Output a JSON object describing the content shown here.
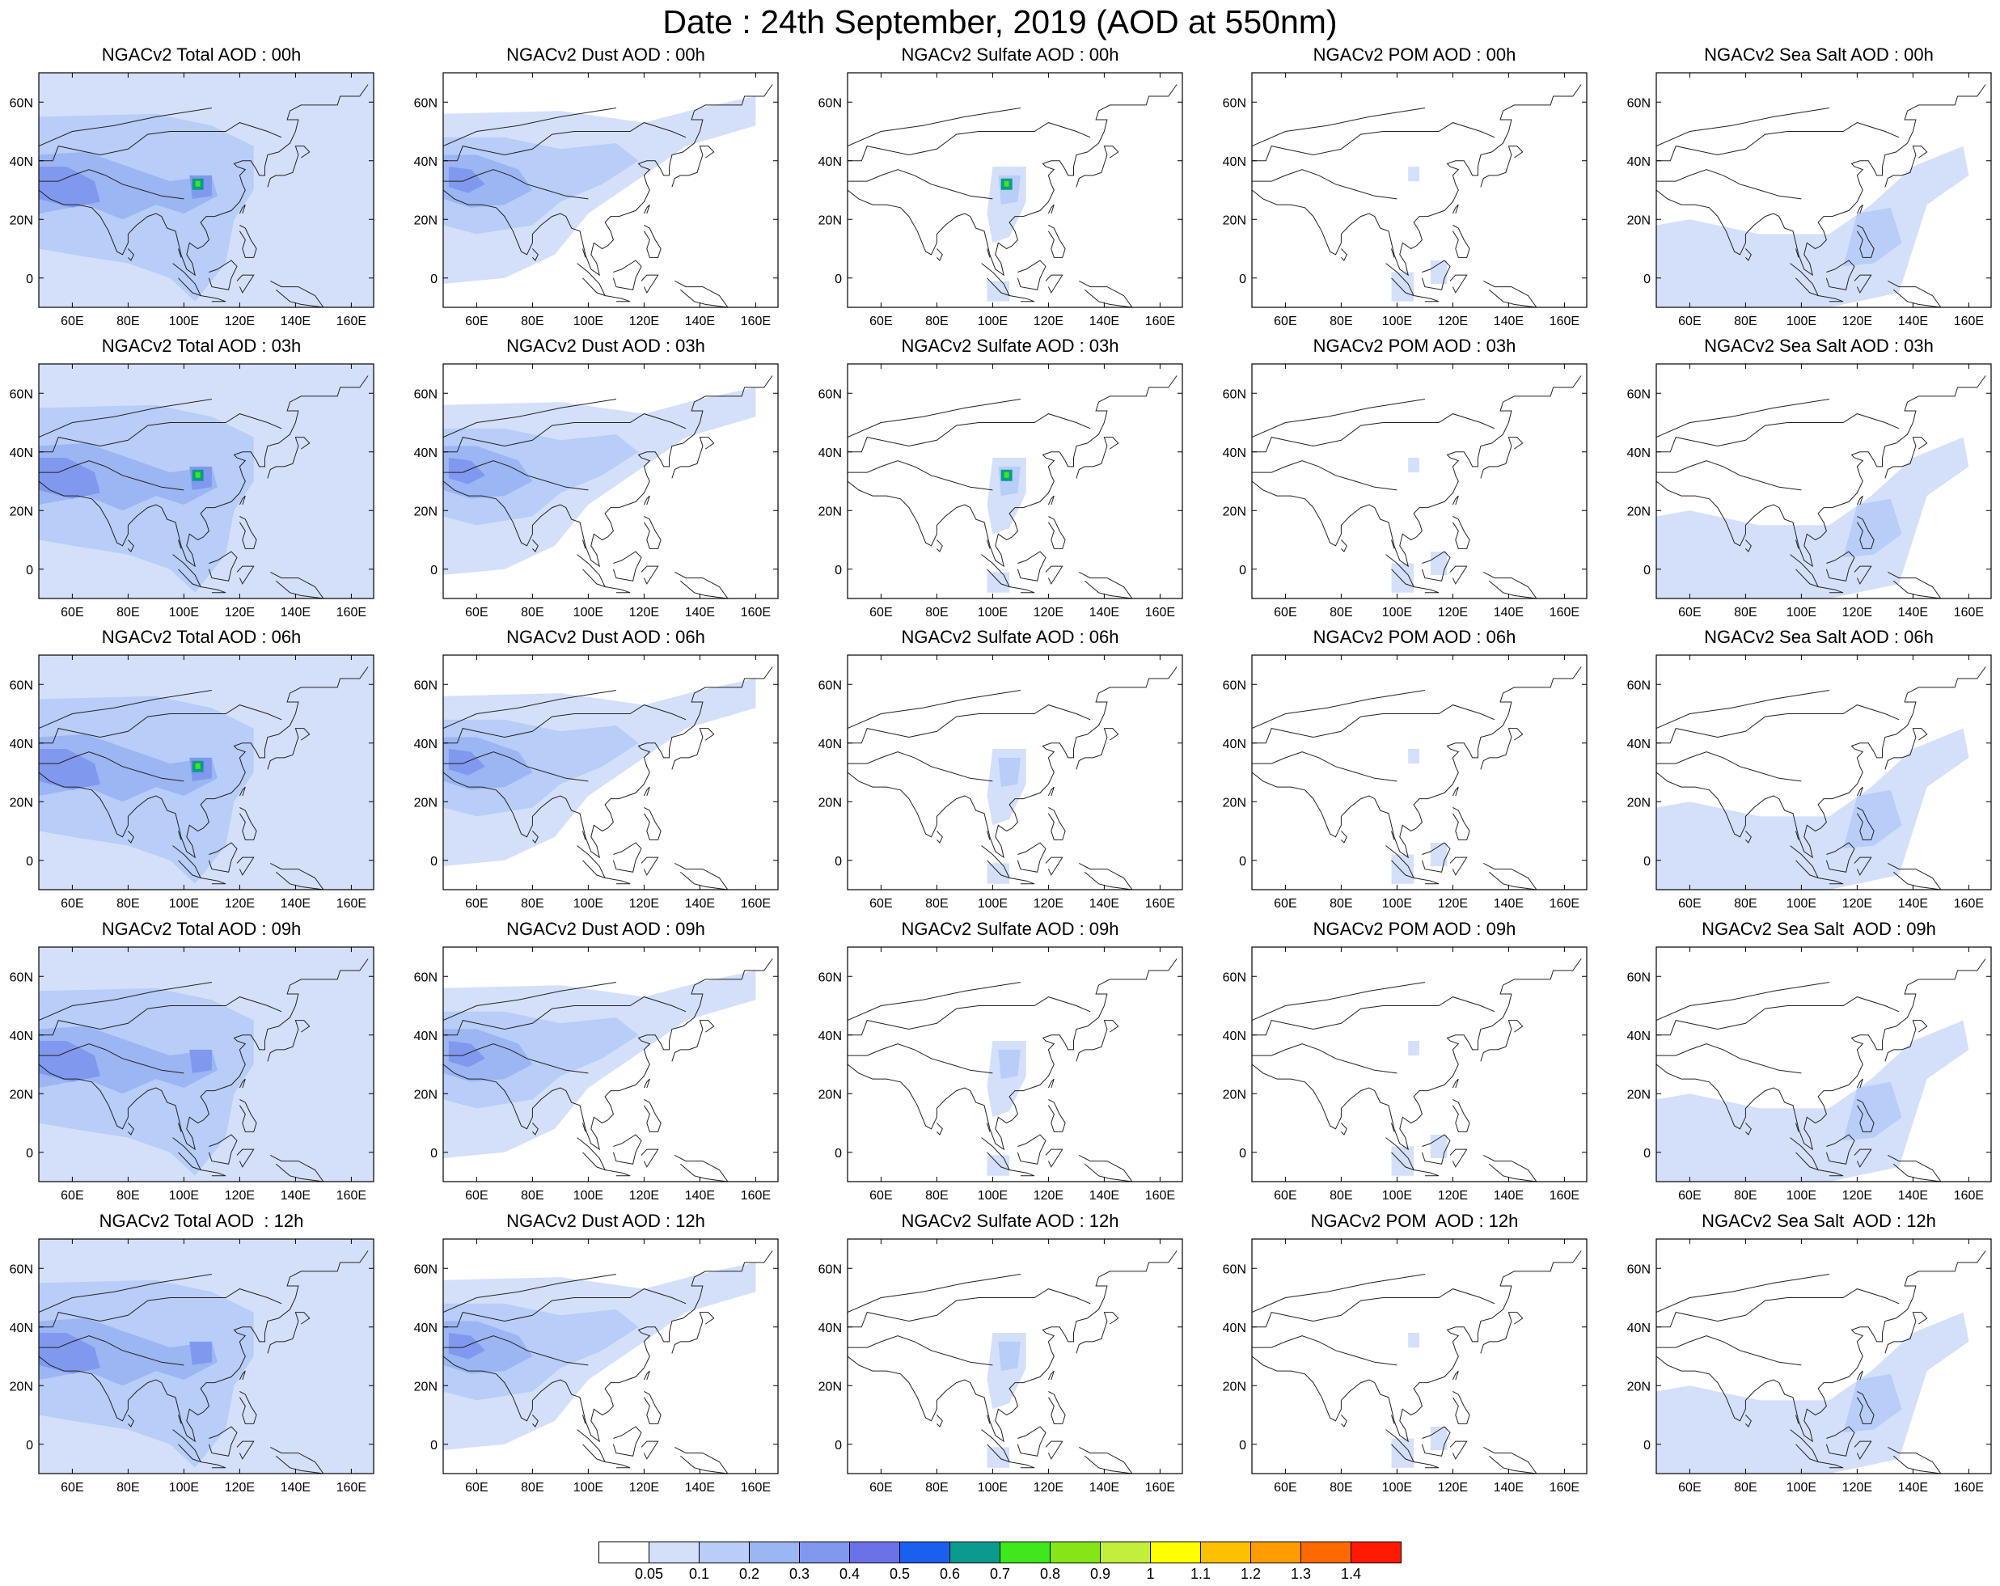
{
  "title": "Date : 24th September, 2019 (AOD at 550nm)",
  "panels": [
    {
      "title": "NGACv2 Total AOD : 00h",
      "species": "total",
      "time": "00h",
      "hot": true
    },
    {
      "title": "NGACv2 Dust AOD : 00h",
      "species": "dust",
      "time": "00h"
    },
    {
      "title": "NGACv2 Sulfate AOD : 00h",
      "species": "sulfate",
      "time": "00h",
      "hot": true
    },
    {
      "title": "NGACv2 POM AOD : 00h",
      "species": "pom",
      "time": "00h"
    },
    {
      "title": "NGACv2 Sea Salt AOD : 00h",
      "species": "seasalt",
      "time": "00h"
    },
    {
      "title": "NGACv2 Total AOD : 03h",
      "species": "total",
      "time": "03h",
      "hot": true
    },
    {
      "title": "NGACv2 Dust AOD : 03h",
      "species": "dust",
      "time": "03h"
    },
    {
      "title": "NGACv2 Sulfate AOD : 03h",
      "species": "sulfate",
      "time": "03h",
      "hot": true
    },
    {
      "title": "NGACv2 POM AOD : 03h",
      "species": "pom",
      "time": "03h"
    },
    {
      "title": "NGACv2 Sea Salt AOD : 03h",
      "species": "seasalt",
      "time": "03h"
    },
    {
      "title": "NGACv2 Total AOD : 06h",
      "species": "total",
      "time": "06h",
      "hot": true
    },
    {
      "title": "NGACv2 Dust AOD : 06h",
      "species": "dust",
      "time": "06h"
    },
    {
      "title": "NGACv2 Sulfate AOD : 06h",
      "species": "sulfate",
      "time": "06h"
    },
    {
      "title": "NGACv2 POM AOD : 06h",
      "species": "pom",
      "time": "06h"
    },
    {
      "title": "NGACv2 Sea Salt AOD : 06h",
      "species": "seasalt",
      "time": "06h"
    },
    {
      "title": "NGACv2 Total AOD : 09h",
      "species": "total",
      "time": "09h"
    },
    {
      "title": "NGACv2 Dust AOD : 09h",
      "species": "dust",
      "time": "09h"
    },
    {
      "title": "NGACv2 Sulfate AOD : 09h",
      "species": "sulfate",
      "time": "09h"
    },
    {
      "title": "NGACv2 POM AOD : 09h",
      "species": "pom",
      "time": "09h"
    },
    {
      "title": "NGACv2 Sea Salt  AOD : 09h",
      "species": "seasalt",
      "time": "09h"
    },
    {
      "title": "NGACv2 Total AOD  : 12h",
      "species": "total",
      "time": "12h"
    },
    {
      "title": "NGACv2 Dust AOD : 12h",
      "species": "dust",
      "time": "12h"
    },
    {
      "title": "NGACv2 Sulfate AOD : 12h",
      "species": "sulfate",
      "time": "12h"
    },
    {
      "title": "NGACv2 POM  AOD : 12h",
      "species": "pom",
      "time": "12h"
    },
    {
      "title": "NGACv2 Sea Salt  AOD : 12h",
      "species": "seasalt",
      "time": "12h"
    }
  ],
  "x_ticks": [
    "60E",
    "80E",
    "100E",
    "120E",
    "140E",
    "160E"
  ],
  "y_ticks": [
    "60N",
    "40N",
    "20N",
    "0"
  ],
  "x_tick_values": [
    60,
    80,
    100,
    120,
    140,
    160
  ],
  "y_tick_values": [
    60,
    40,
    20,
    0
  ],
  "lon_range": [
    48,
    168
  ],
  "lat_range": [
    -10,
    70
  ],
  "colorbar": {
    "labels": [
      "0.05",
      "0.1",
      "0.2",
      "0.3",
      "0.4",
      "0.5",
      "0.6",
      "0.7",
      "0.8",
      "0.9",
      "1",
      "1.1",
      "1.2",
      "1.3",
      "1.4"
    ],
    "colors": [
      "#ffffff",
      "#d4e0fa",
      "#b8cdf7",
      "#9cb5f3",
      "#8099ef",
      "#6a72e8",
      "#1a5ff0",
      "#0b9a8e",
      "#3ee81c",
      "#84e617",
      "#c4ee3c",
      "#ffff00",
      "#ffc000",
      "#ff9c00",
      "#ff6a00",
      "#ff1a00"
    ]
  }
}
